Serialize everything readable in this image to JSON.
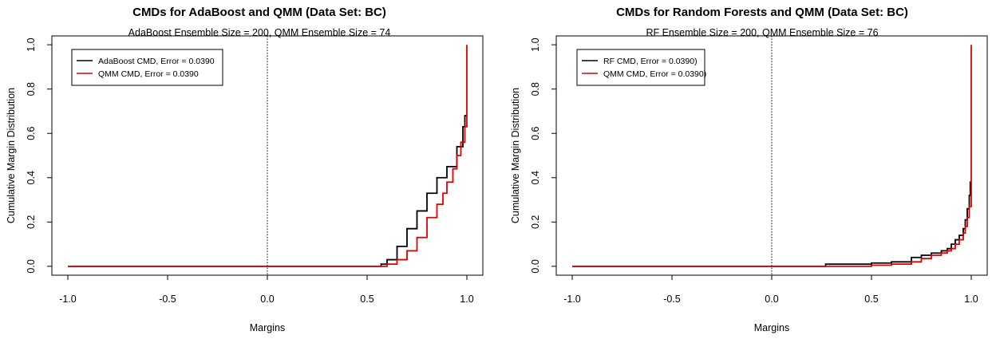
{
  "chart_data": [
    {
      "type": "line",
      "title": "CMDs for AdaBoost and QMM (Data Set: BC)",
      "subtitle": "AdaBoost Ensemble Size = 200, QMM Ensemble Size = 74",
      "xlabel": "Margins",
      "ylabel": "Cumulative Margin Distribution",
      "xlim": [
        -1.0,
        1.0
      ],
      "ylim": [
        0.0,
        1.0
      ],
      "xticks": [
        -1.0,
        -0.5,
        0.0,
        0.5,
        1.0
      ],
      "xtick_labels": [
        "-1.0",
        "-0.5",
        "0.0",
        "0.5",
        "1.0"
      ],
      "yticks": [
        0.0,
        0.2,
        0.4,
        0.6,
        0.8,
        1.0
      ],
      "ytick_labels": [
        "0.0",
        "0.2",
        "0.4",
        "0.6",
        "0.8",
        "1.0"
      ],
      "vline": 0.0,
      "grid": false,
      "legend_position": "top-left",
      "series": [
        {
          "name": "AdaBoost CMD, Error = 0.0390",
          "color": "#000000",
          "x": [
            -1.0,
            0.55,
            0.57,
            0.6,
            0.65,
            0.7,
            0.75,
            0.8,
            0.85,
            0.9,
            0.95,
            0.98,
            0.99,
            1.0
          ],
          "y": [
            0.0,
            0.0,
            0.01,
            0.03,
            0.09,
            0.17,
            0.25,
            0.33,
            0.4,
            0.45,
            0.54,
            0.63,
            0.68,
            0.68
          ]
        },
        {
          "name": "QMM CMD, Error = 0.0390",
          "color": "#e00000",
          "x": [
            -1.0,
            0.56,
            0.6,
            0.65,
            0.7,
            0.75,
            0.8,
            0.85,
            0.88,
            0.9,
            0.93,
            0.95,
            0.97,
            0.99,
            1.0,
            1.0
          ],
          "y": [
            0.0,
            0.0,
            0.01,
            0.03,
            0.07,
            0.13,
            0.22,
            0.28,
            0.33,
            0.38,
            0.44,
            0.5,
            0.56,
            0.63,
            0.65,
            1.0
          ]
        }
      ]
    },
    {
      "type": "line",
      "title": "CMDs for Random Forests and QMM (Data Set: BC)",
      "subtitle": "RF Ensemble Size = 200, QMM Ensemble Size = 76",
      "xlabel": "Margins",
      "ylabel": "Cumulative Margin Distribution",
      "xlim": [
        -1.0,
        1.0
      ],
      "ylim": [
        0.0,
        1.0
      ],
      "xticks": [
        -1.0,
        -0.5,
        0.0,
        0.5,
        1.0
      ],
      "xtick_labels": [
        "-1.0",
        "-0.5",
        "0.0",
        "0.5",
        "1.0"
      ],
      "yticks": [
        0.0,
        0.2,
        0.4,
        0.6,
        0.8,
        1.0
      ],
      "ytick_labels": [
        "0.0",
        "0.2",
        "0.4",
        "0.6",
        "0.8",
        "1.0"
      ],
      "vline": 0.0,
      "grid": false,
      "legend_position": "top-left",
      "series": [
        {
          "name": "RF CMD, Error = 0.0390)",
          "color": "#000000",
          "x": [
            -1.0,
            0.25,
            0.27,
            0.4,
            0.5,
            0.6,
            0.7,
            0.75,
            0.8,
            0.85,
            0.88,
            0.9,
            0.92,
            0.94,
            0.96,
            0.97,
            0.98,
            0.99,
            0.995,
            1.0
          ],
          "y": [
            0.0,
            0.0,
            0.01,
            0.01,
            0.015,
            0.02,
            0.04,
            0.05,
            0.06,
            0.07,
            0.08,
            0.1,
            0.12,
            0.14,
            0.17,
            0.21,
            0.26,
            0.32,
            0.38,
            0.38
          ]
        },
        {
          "name": "QMM CMD, Error = 0.0390)",
          "color": "#e00000",
          "x": [
            -1.0,
            0.35,
            0.4,
            0.5,
            0.6,
            0.7,
            0.75,
            0.8,
            0.85,
            0.88,
            0.9,
            0.92,
            0.94,
            0.96,
            0.97,
            0.98,
            0.99,
            1.0,
            1.0
          ],
          "y": [
            0.0,
            0.0,
            0.0,
            0.005,
            0.01,
            0.02,
            0.035,
            0.05,
            0.06,
            0.07,
            0.08,
            0.1,
            0.12,
            0.15,
            0.18,
            0.22,
            0.27,
            0.3,
            1.0
          ]
        }
      ]
    }
  ]
}
